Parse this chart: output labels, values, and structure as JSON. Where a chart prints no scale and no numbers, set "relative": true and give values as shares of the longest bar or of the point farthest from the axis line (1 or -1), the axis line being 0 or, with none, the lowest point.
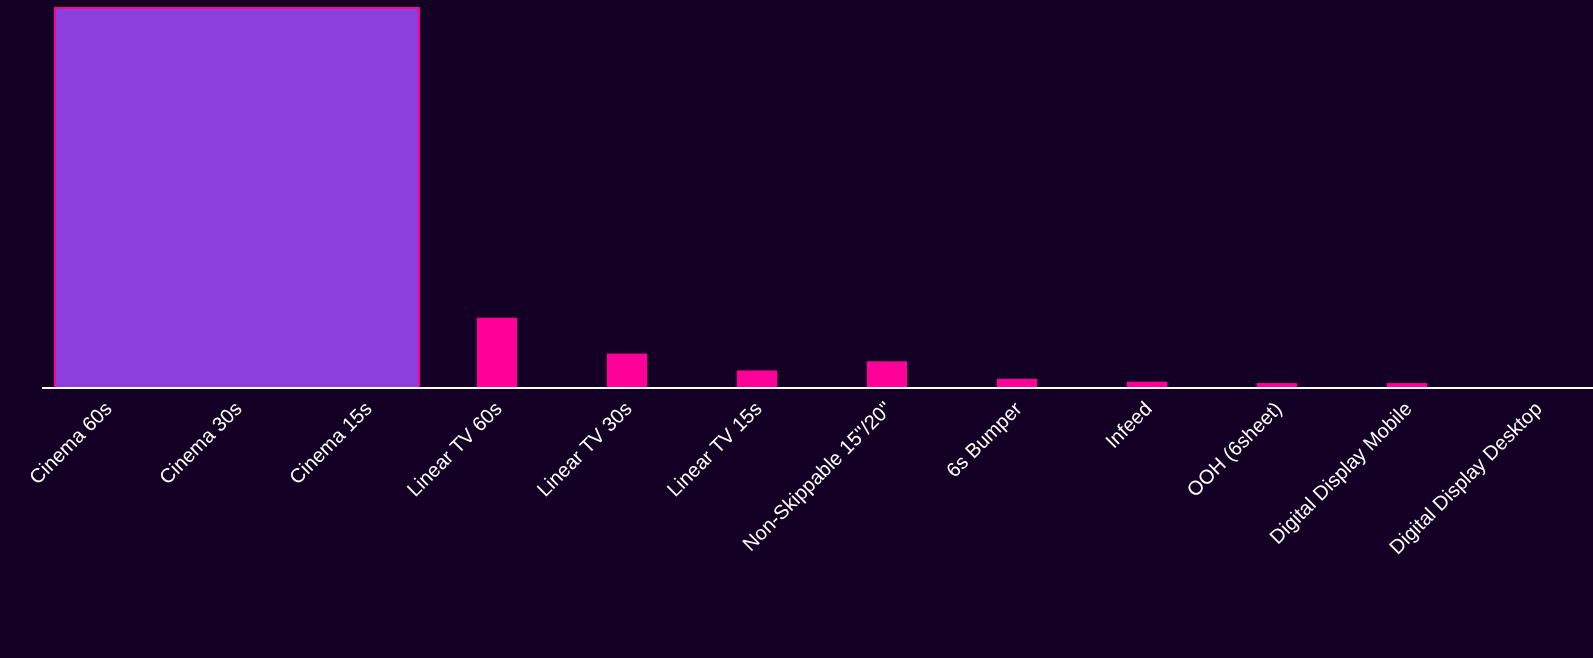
{
  "chart_data": {
    "type": "bar",
    "relative": true,
    "categories": [
      "Cinema 60s",
      "Cinema 30s",
      "Cinema 15s",
      "Linear TV 60s",
      "Linear TV 30s",
      "Linear TV 15s",
      "Non-Skippable 15\"/20\"",
      "6s Bumper",
      "Infeed",
      "OOH (6sheet)",
      "Digital Display Mobile",
      "Digital Display Desktop"
    ],
    "values": [
      null,
      null,
      null,
      1,
      0.49,
      0.25,
      0.38,
      0.13,
      0.09,
      0.07,
      0.07,
      null
    ],
    "color": "#ff0099",
    "bands": [
      {
        "axis": "x",
        "from": "Cinema 60s",
        "to": "Cinema 15s",
        "color": "#8b3fdc"
      }
    ]
  }
}
